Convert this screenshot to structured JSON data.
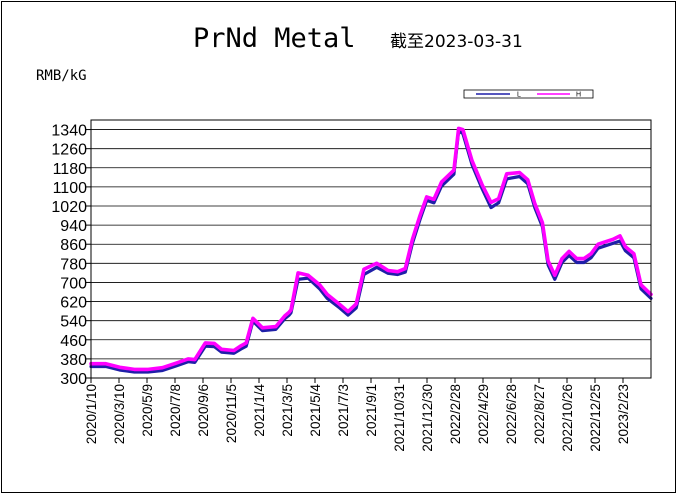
{
  "colors": {
    "low_series": "#1f1fa8",
    "high_series": "#ff00ff",
    "grid": "#000000",
    "background": "#ffffff"
  },
  "chart_data": {
    "type": "line",
    "title": "PrNd Metal",
    "subtitle": "截至2023-03-31",
    "ylabel": "RMB/kG",
    "xlabel": "",
    "ylim": [
      300,
      1380
    ],
    "yticks": [
      300,
      380,
      460,
      540,
      620,
      700,
      780,
      860,
      940,
      1020,
      1100,
      1180,
      1260,
      1340
    ],
    "grid": true,
    "legend_position": "top-right",
    "x_tick_labels": [
      "2020/1/10",
      "2020/3/10",
      "2020/5/9",
      "2020/7/8",
      "2020/9/6",
      "2020/11/5",
      "2021/1/4",
      "2021/3/5",
      "2021/5/4",
      "2021/7/3",
      "2021/9/1",
      "2021/10/31",
      "2021/12/30",
      "2022/2/28",
      "2022/4/29",
      "2022/6/28",
      "2022/8/27",
      "2022/10/26",
      "2022/12/25",
      "2023/2/23"
    ],
    "x": [
      "2020-01-10",
      "2020-02-10",
      "2020-03-10",
      "2020-04-10",
      "2020-05-09",
      "2020-06-08",
      "2020-07-08",
      "2020-08-01",
      "2020-08-15",
      "2020-09-06",
      "2020-09-25",
      "2020-10-10",
      "2020-11-05",
      "2020-11-20",
      "2020-12-01",
      "2020-12-15",
      "2021-01-04",
      "2021-02-01",
      "2021-02-20",
      "2021-03-01",
      "2021-03-05",
      "2021-03-20",
      "2021-04-10",
      "2021-05-04",
      "2021-05-20",
      "2021-06-15",
      "2021-07-03",
      "2021-07-20",
      "2021-08-05",
      "2021-09-01",
      "2021-09-25",
      "2021-10-15",
      "2021-10-31",
      "2021-11-15",
      "2021-12-01",
      "2021-12-15",
      "2021-12-30",
      "2022-01-15",
      "2022-02-10",
      "2022-02-20",
      "2022-03-01",
      "2022-03-20",
      "2022-04-10",
      "2022-04-29",
      "2022-05-15",
      "2022-06-01",
      "2022-06-28",
      "2022-07-15",
      "2022-07-30",
      "2022-08-15",
      "2022-08-27",
      "2022-09-10",
      "2022-09-25",
      "2022-10-10",
      "2022-10-26",
      "2022-11-10",
      "2022-11-25",
      "2022-12-10",
      "2022-12-25",
      "2023-01-10",
      "2023-01-25",
      "2023-02-05",
      "2023-02-23",
      "2023-03-10",
      "2023-03-31"
    ],
    "series": [
      {
        "name": "L",
        "values": [
          355,
          355,
          340,
          332,
          332,
          338,
          358,
          375,
          372,
          440,
          438,
          415,
          410,
          428,
          440,
          545,
          505,
          510,
          555,
          570,
          580,
          720,
          725,
          680,
          640,
          600,
          570,
          600,
          740,
          770,
          745,
          740,
          750,
          870,
          970,
          1050,
          1040,
          1110,
          1160,
          1340,
          1330,
          1200,
          1100,
          1020,
          1040,
          1140,
          1150,
          1120,
          1020,
          940,
          780,
          720,
          790,
          820,
          790,
          790,
          810,
          850,
          860,
          870,
          880,
          840,
          810,
          680,
          640
        ]
      },
      {
        "name": "H",
        "values": [
          360,
          360,
          345,
          336,
          336,
          343,
          363,
          380,
          377,
          447,
          445,
          420,
          415,
          435,
          447,
          550,
          510,
          515,
          560,
          575,
          585,
          740,
          730,
          690,
          650,
          608,
          578,
          610,
          755,
          780,
          750,
          745,
          758,
          880,
          980,
          1058,
          1048,
          1120,
          1170,
          1345,
          1340,
          1210,
          1110,
          1035,
          1050,
          1155,
          1160,
          1130,
          1030,
          950,
          790,
          730,
          800,
          830,
          800,
          800,
          820,
          860,
          870,
          880,
          895,
          850,
          820,
          690,
          650
        ]
      }
    ]
  }
}
